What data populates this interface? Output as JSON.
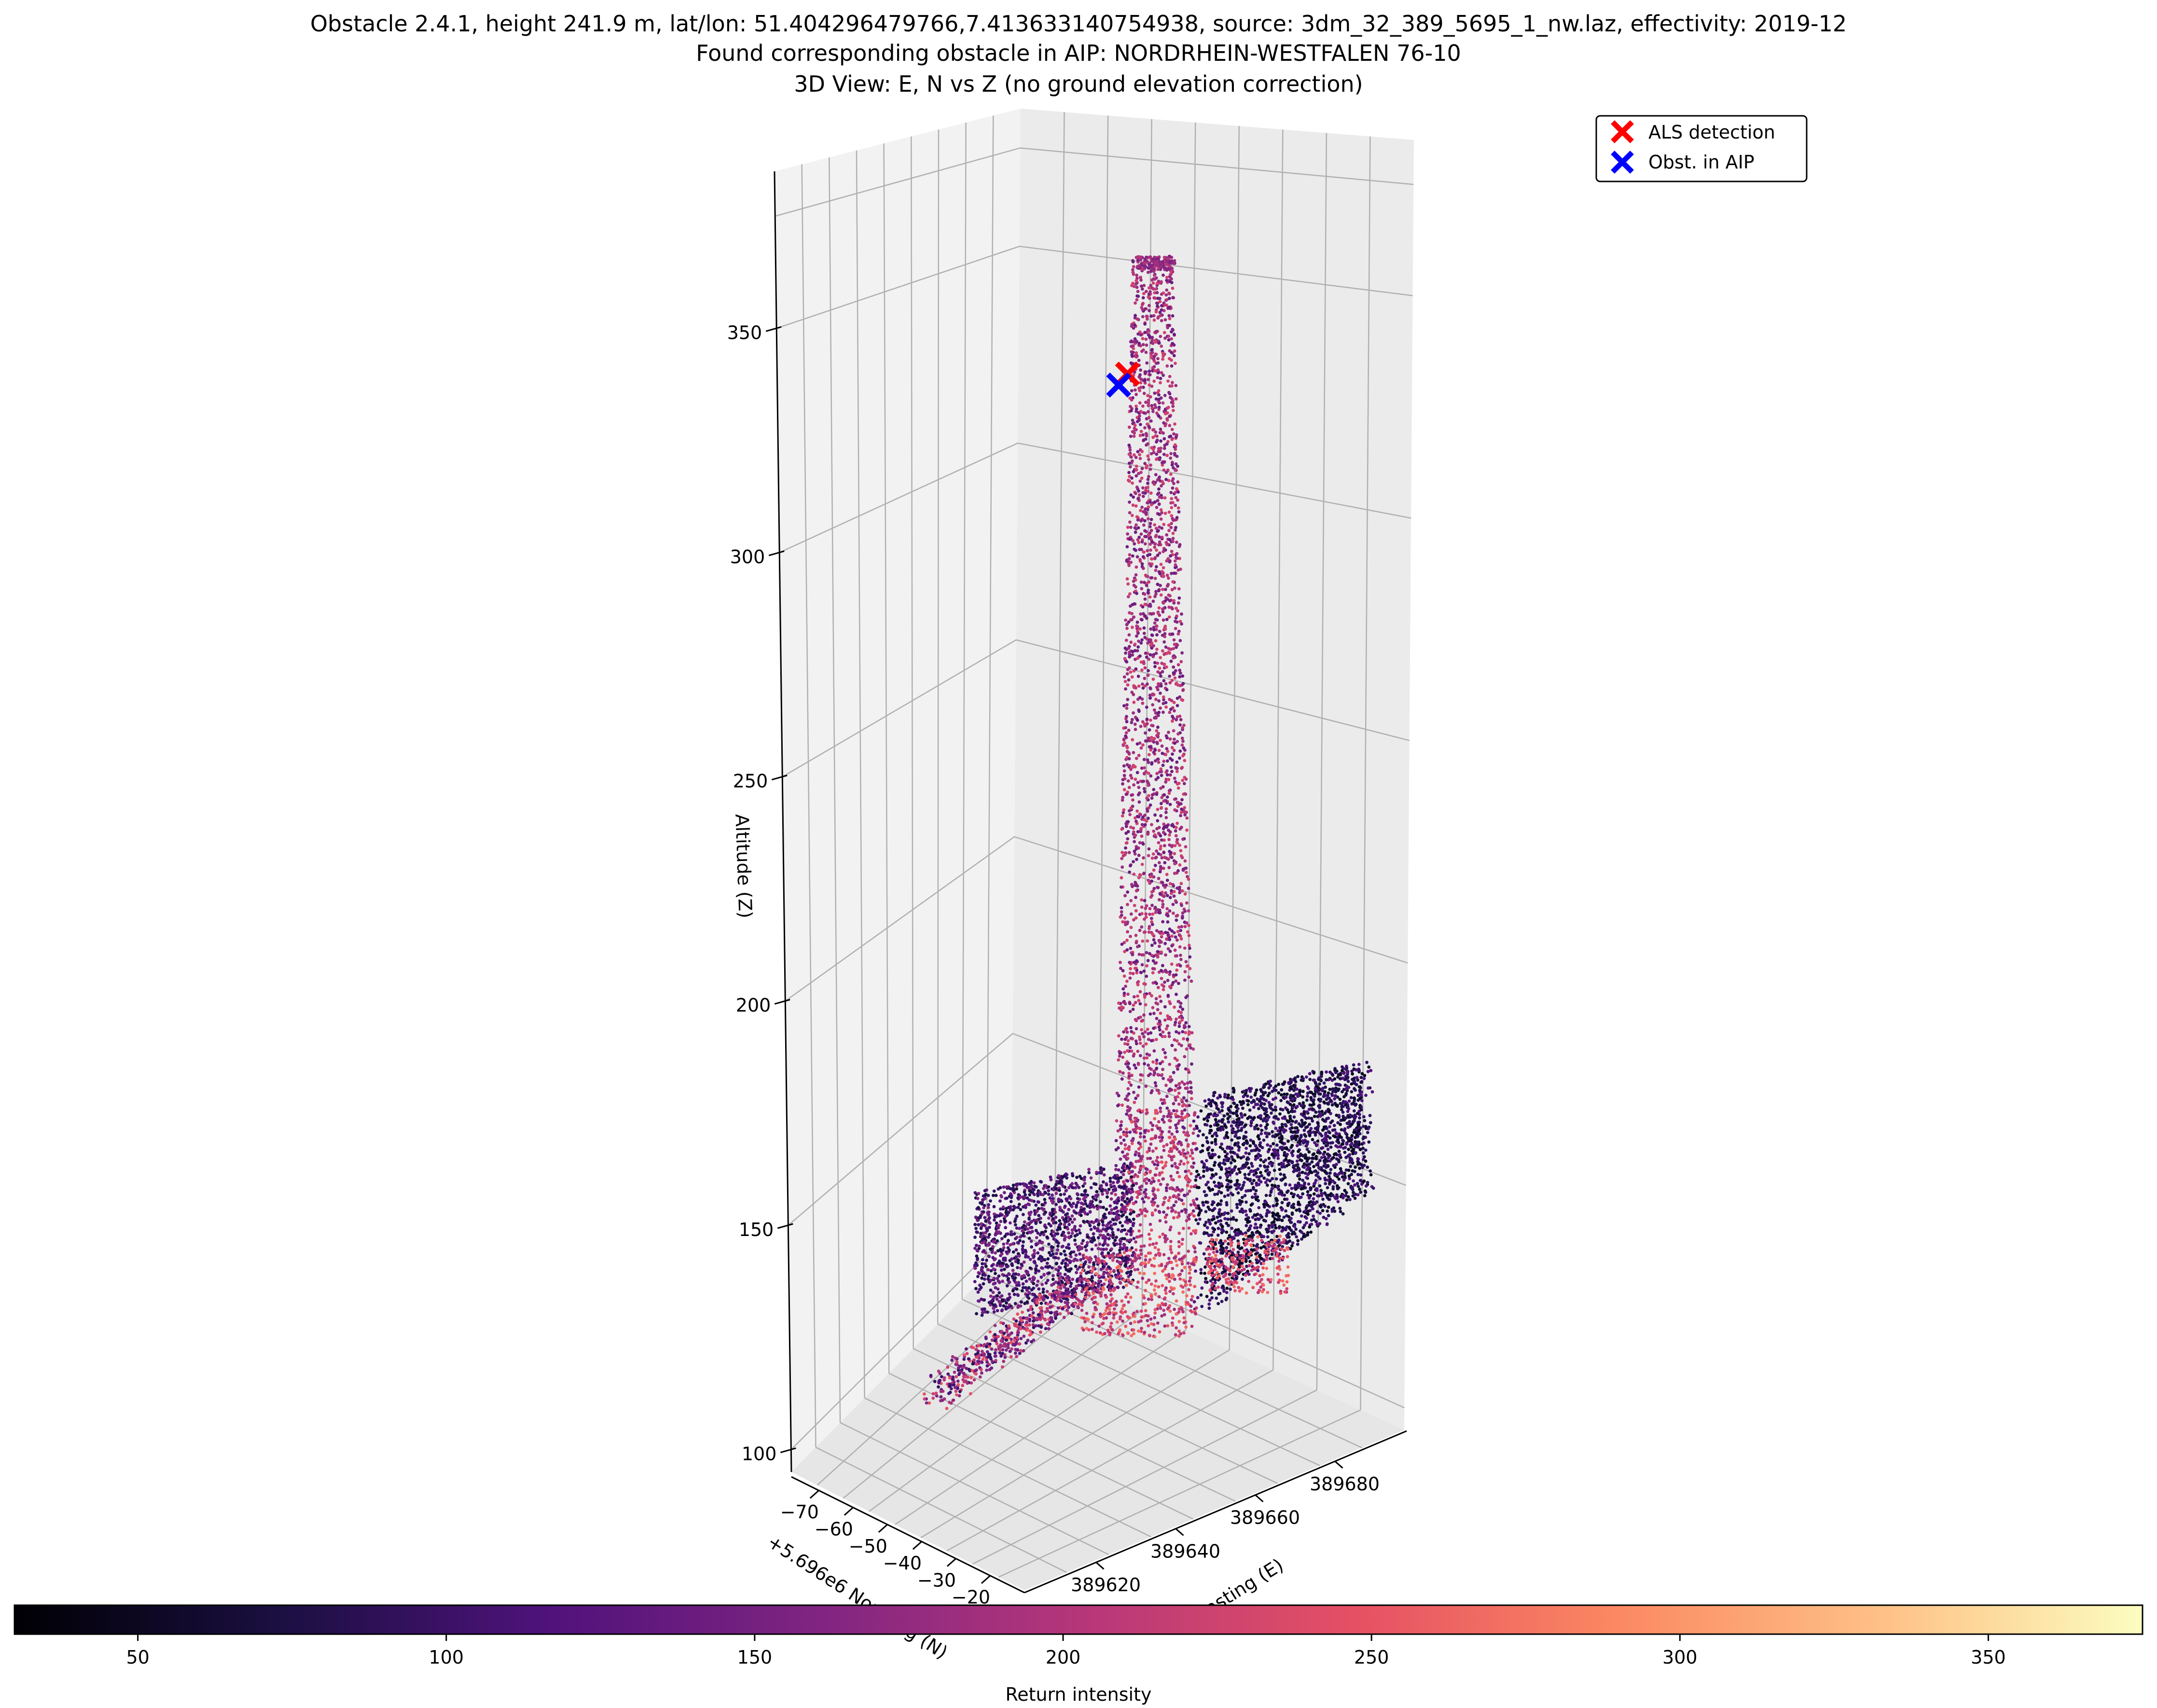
{
  "title": {
    "line1": "Obstacle 2.4.1, height 241.9 m, lat/lon: 51.404296479766,7.413633140754938, source: 3dm_32_389_5695_1_nw.laz, effectivity: 2019-12",
    "line2": "Found corresponding obstacle in AIP: NORDRHEIN-WESTFALEN 76-10",
    "line3": "3D View: E, N vs Z (no ground elevation correction)"
  },
  "chart_data": {
    "type": "scatter",
    "subtype": "3d-point-cloud",
    "axes": {
      "z": {
        "label": "Altitude (Z)",
        "ticks": [
          100,
          150,
          200,
          250,
          300,
          350
        ],
        "range": [
          95,
          385
        ]
      },
      "x": {
        "label": "Easting (E)",
        "ticks": [
          389620,
          389640,
          389660,
          389680
        ],
        "tick_labels": [
          "389620",
          "389640",
          "389660",
          "389680"
        ],
        "range": [
          389602,
          389698
        ]
      },
      "y": {
        "label": "+5.696e6 Northing (N)",
        "offset_label": "+5.696e6",
        "ticks": [
          -70,
          -60,
          -50,
          -40,
          -30,
          -20
        ],
        "tick_labels": [
          "−70",
          "−60",
          "−50",
          "−40",
          "−30",
          "−20"
        ],
        "range": [
          -78,
          -10
        ]
      },
      "grid": true
    },
    "legend": {
      "placement": "top-right",
      "entries": [
        {
          "name": "ALS detection",
          "marker": "x",
          "color": "#ff0000"
        },
        {
          "name": "Obst. in AIP",
          "marker": "x",
          "color": "#0000ff"
        }
      ]
    },
    "markers": [
      {
        "series": "ALS detection",
        "easting": 389655,
        "northing": -44,
        "z": 371,
        "color": "#ff0000"
      },
      {
        "series": "Obst. in AIP",
        "easting": 389656,
        "northing": -48,
        "z": 372,
        "color": "#0000ff"
      }
    ],
    "colorbar": {
      "label": "Return intensity",
      "colormap": "magma",
      "range": [
        30,
        375
      ],
      "ticks": [
        50,
        100,
        150,
        200,
        250,
        300,
        350
      ],
      "orientation": "horizontal",
      "placement": "bottom"
    }
  }
}
